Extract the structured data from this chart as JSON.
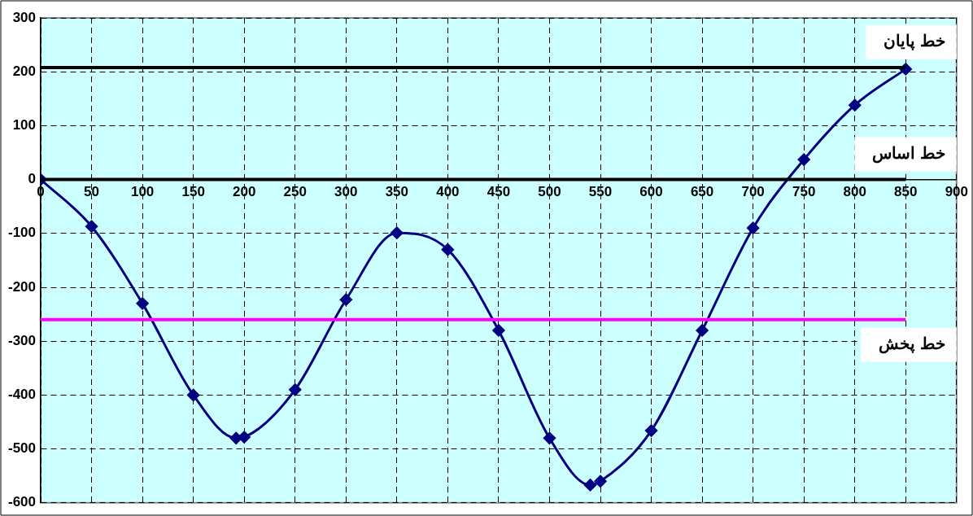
{
  "chart_data": {
    "type": "line",
    "x": [
      0,
      50,
      100,
      150,
      192,
      200,
      250,
      300,
      350,
      400,
      450,
      500,
      540,
      550,
      600,
      650,
      700,
      750,
      800,
      850
    ],
    "series": [
      {
        "color": "#000080",
        "values": [
          0,
          -87,
          -230,
          -400,
          -480,
          -478,
          -390,
          -223,
          -99,
          -130,
          -280,
          -480,
          -567,
          -560,
          -466,
          -280,
          -90,
          37,
          138,
          205
        ]
      }
    ],
    "xlim": [
      0,
      900
    ],
    "xticks": [
      0,
      50,
      100,
      150,
      200,
      250,
      300,
      350,
      400,
      450,
      500,
      550,
      600,
      650,
      700,
      750,
      800,
      850,
      900
    ],
    "ylim": [
      -600,
      300
    ],
    "yticks": [
      -600,
      -500,
      -400,
      -300,
      -200,
      -100,
      0,
      100,
      200,
      300
    ],
    "ref_lines": [
      {
        "axis": "y",
        "value": 208,
        "label": "خط پایان",
        "color": "#000000"
      },
      {
        "axis": "y",
        "value": 0,
        "label": "خط اساس",
        "color": "#000000"
      },
      {
        "axis": "y",
        "value": -260,
        "label": "خط پخش",
        "color": "#ff00ff"
      }
    ],
    "grid": true,
    "legend": false,
    "marker": "diamond",
    "line_style": "solid"
  }
}
